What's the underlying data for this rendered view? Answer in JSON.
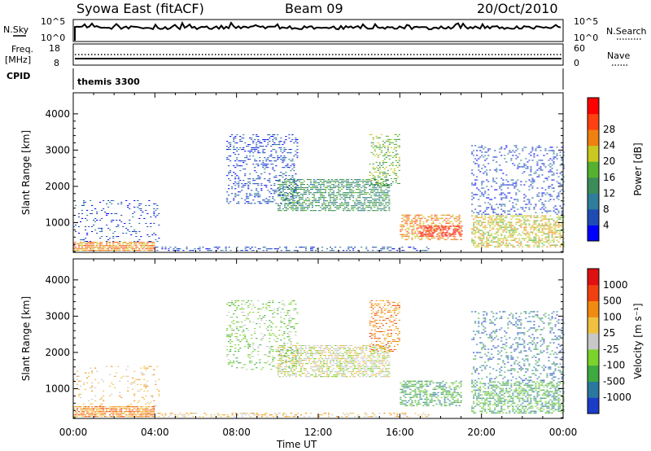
{
  "header": {
    "station": "Syowa East (fitACF)",
    "beam": "Beam 09",
    "date": "20/Oct/2010"
  },
  "top_panels": {
    "nsky_label": "N.Sky",
    "nsky_ticks": [
      "10^5",
      "10^0"
    ],
    "nsearch_label": "N.Search",
    "nsearch_ticks": [
      "10^5",
      "10^0"
    ],
    "freq_label_1": "Freq.",
    "freq_label_2": "[MHz]",
    "freq_ticks": [
      "18",
      "8"
    ],
    "nave_label": "Nave",
    "nave_ticks": [
      "60",
      "0"
    ],
    "cpid_label": "CPID",
    "cpid_value": "themis 3300"
  },
  "chart_data": [
    {
      "type": "heatmap",
      "name": "power",
      "ylabel": "Slant Range [km]",
      "yticks": [
        "1000",
        "2000",
        "3000",
        "4000"
      ],
      "ylim": [
        180,
        4580
      ],
      "xlim": [
        0,
        24
      ],
      "colorbar_label": "Power [dB]",
      "colorbar_ticks": [
        "4",
        "8",
        "12",
        "16",
        "20",
        "24",
        "28"
      ],
      "colors": [
        "#0000ff",
        "#1f4bb4",
        "#2e7d9a",
        "#3c8c5a",
        "#54b230",
        "#c8c820",
        "#f08010",
        "#ff4010",
        "#ff0000"
      ],
      "regions": [
        {
          "t0": 0.0,
          "t1": 4.0,
          "r0": 200,
          "r1": 450,
          "level": 6,
          "density": 0.8
        },
        {
          "t0": 0.0,
          "t1": 4.2,
          "r0": 450,
          "r1": 1600,
          "level": 1,
          "density": 0.12
        },
        {
          "t0": 4.0,
          "t1": 17.5,
          "r0": 200,
          "r1": 330,
          "level": 1,
          "density": 0.35
        },
        {
          "t0": 7.5,
          "t1": 11.0,
          "r0": 1500,
          "r1": 3400,
          "level": 1,
          "density": 0.25
        },
        {
          "t0": 10.0,
          "t1": 15.5,
          "r0": 1300,
          "r1": 2200,
          "level": 3,
          "density": 0.6
        },
        {
          "t0": 14.5,
          "t1": 16.0,
          "r0": 2000,
          "r1": 3400,
          "level": 4,
          "density": 0.35
        },
        {
          "t0": 16.0,
          "t1": 19.0,
          "r0": 500,
          "r1": 1200,
          "level": 6,
          "density": 0.5
        },
        {
          "t0": 17.0,
          "t1": 19.0,
          "r0": 600,
          "r1": 900,
          "level": 8,
          "density": 0.6
        },
        {
          "t0": 19.5,
          "t1": 24.0,
          "r0": 300,
          "r1": 1200,
          "level": 5,
          "density": 0.5
        },
        {
          "t0": 19.5,
          "t1": 24.0,
          "r0": 1200,
          "r1": 3100,
          "level": 1,
          "density": 0.2
        }
      ]
    },
    {
      "type": "heatmap",
      "name": "velocity",
      "ylabel": "Slant Range [km]",
      "yticks": [
        "1000",
        "2000",
        "3000",
        "4000"
      ],
      "ylim": [
        180,
        4580
      ],
      "xlim": [
        0,
        24
      ],
      "colorbar_label": "Velocity [m s⁻¹]",
      "colorbar_ticks": [
        "1000",
        "500",
        "100",
        "25",
        "-25",
        "-100",
        "-500",
        "-1000"
      ],
      "colors": [
        "#1c3cc8",
        "#2a78a0",
        "#3caa40",
        "#7ad22a",
        "#c8c8c8",
        "#f0c040",
        "#f08a10",
        "#f04010",
        "#e01010"
      ],
      "regions": [
        {
          "t0": 0.0,
          "t1": 4.0,
          "r0": 200,
          "r1": 500,
          "level": 6,
          "density": 0.8
        },
        {
          "t0": 0.0,
          "t1": 4.2,
          "r0": 500,
          "r1": 1600,
          "level": 5,
          "density": 0.12
        },
        {
          "t0": 4.0,
          "t1": 17.5,
          "r0": 200,
          "r1": 330,
          "level": 5,
          "density": 0.3
        },
        {
          "t0": 7.5,
          "t1": 11.0,
          "r0": 1500,
          "r1": 3400,
          "level": 3,
          "density": 0.22
        },
        {
          "t0": 10.0,
          "t1": 15.5,
          "r0": 1300,
          "r1": 2200,
          "level": 4,
          "density": 0.6
        },
        {
          "t0": 14.5,
          "t1": 16.0,
          "r0": 2000,
          "r1": 3400,
          "level": 6,
          "density": 0.35
        },
        {
          "t0": 16.0,
          "t1": 19.0,
          "r0": 500,
          "r1": 1200,
          "level": 2,
          "density": 0.5
        },
        {
          "t0": 19.5,
          "t1": 24.0,
          "r0": 300,
          "r1": 1200,
          "level": 2,
          "density": 0.5
        },
        {
          "t0": 19.5,
          "t1": 24.0,
          "r0": 1200,
          "r1": 3100,
          "level": 1,
          "density": 0.2
        }
      ]
    }
  ],
  "x_axis": {
    "label": "Time UT",
    "ticks": [
      "00:00",
      "04:00",
      "08:00",
      "12:00",
      "16:00",
      "20:00",
      "00:00"
    ]
  }
}
